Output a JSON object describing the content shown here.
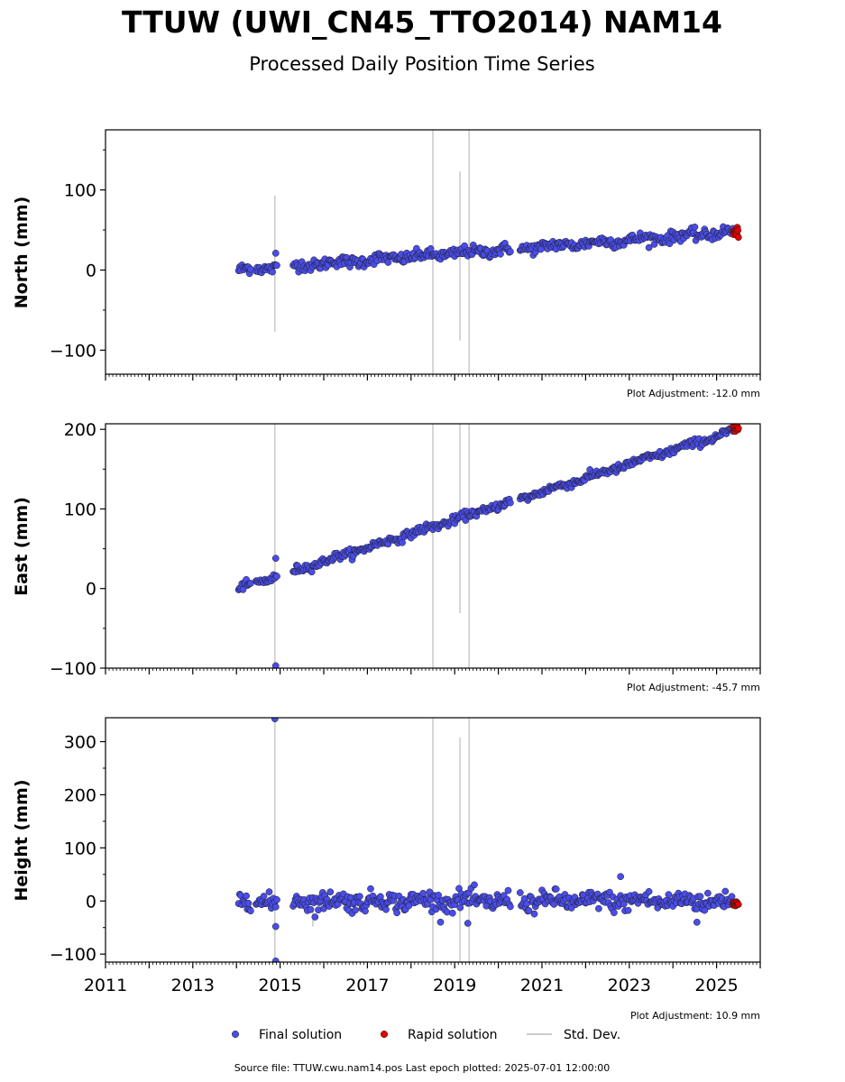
{
  "title": "TTUW (UWI_CN45_TTO2014) NAM14",
  "subtitle": "Processed Daily Position Time Series",
  "source": "Source file: TTUW.cwu.nam14.pos  Last epoch plotted: 2025-07-01 12:00:00",
  "legend": {
    "final": "Final solution",
    "rapid": "Rapid solution",
    "std": "Std. Dev."
  },
  "colors": {
    "final": "#4a4de8",
    "rapid": "#e00000",
    "std": "#cccccc"
  },
  "chart_data": [
    {
      "type": "scatter",
      "component": "north",
      "ylabel": "North (mm)",
      "adjustment": "Plot Adjustment: -12.0 mm",
      "xlim": [
        2011.0,
        2026.0
      ],
      "ylim": [
        -130,
        175
      ],
      "yticks": [
        -100,
        0,
        100
      ],
      "trend": [
        {
          "x": 2014.05,
          "y": 0
        },
        {
          "x": 2025.5,
          "y": 48
        }
      ],
      "scatter_sd": 3.5,
      "gap_intervals": [
        [
          2014.95,
          2015.3
        ],
        [
          2020.3,
          2020.5
        ]
      ],
      "std_bars": [
        {
          "x": 2014.88,
          "low": -77,
          "high": 93
        },
        {
          "x": 2018.5,
          "low": -130,
          "high": 175
        },
        {
          "x": 2019.12,
          "low": -88,
          "high": 123
        },
        {
          "x": 2019.33,
          "low": -130,
          "high": 175
        }
      ],
      "outliers": [
        {
          "x": 2014.9,
          "y": 21
        }
      ],
      "rapid": {
        "x_start": 2025.38,
        "x_end": 2025.5,
        "y": 47
      }
    },
    {
      "type": "scatter",
      "component": "east",
      "ylabel": "East (mm)",
      "adjustment": "Plot Adjustment: -45.7 mm",
      "xlim": [
        2011.0,
        2026.0
      ],
      "ylim": [
        -100,
        207
      ],
      "yticks": [
        -100,
        0,
        100,
        200
      ],
      "trend": [
        {
          "x": 2014.05,
          "y": 0
        },
        {
          "x": 2025.5,
          "y": 200
        }
      ],
      "scatter_sd": 2.5,
      "gap_intervals": [
        [
          2014.95,
          2015.3
        ],
        [
          2020.3,
          2020.5
        ]
      ],
      "std_bars": [
        {
          "x": 2014.88,
          "low": -100,
          "high": 207
        },
        {
          "x": 2018.5,
          "low": -100,
          "high": 207
        },
        {
          "x": 2019.12,
          "low": -31,
          "high": 207
        },
        {
          "x": 2019.33,
          "low": -100,
          "high": 207
        }
      ],
      "outliers": [
        {
          "x": 2014.9,
          "y": 38
        },
        {
          "x": 2014.9,
          "y": -97
        }
      ],
      "rapid": {
        "x_start": 2025.38,
        "x_end": 2025.5,
        "y": 200
      }
    },
    {
      "type": "scatter",
      "component": "height",
      "ylabel": "Height (mm)",
      "adjustment": "Plot Adjustment: 10.9 mm",
      "xlim": [
        2011.0,
        2026.0
      ],
      "ylim": [
        -115,
        345
      ],
      "yticks": [
        -100,
        0,
        100,
        200,
        300
      ],
      "xticks": [
        2011,
        2013,
        2015,
        2017,
        2019,
        2021,
        2023,
        2025
      ],
      "trend": [
        {
          "x": 2014.05,
          "y": 0
        },
        {
          "x": 2025.5,
          "y": 0
        }
      ],
      "scatter_sd": 9,
      "gap_intervals": [
        [
          2014.95,
          2015.3
        ],
        [
          2020.3,
          2020.5
        ]
      ],
      "std_bars": [
        {
          "x": 2014.88,
          "low": -115,
          "high": 345
        },
        {
          "x": 2015.75,
          "low": -48,
          "high": -15
        },
        {
          "x": 2018.5,
          "low": -115,
          "high": 345
        },
        {
          "x": 2019.12,
          "low": -115,
          "high": 308
        },
        {
          "x": 2019.33,
          "low": -115,
          "high": 345
        }
      ],
      "outliers": [
        {
          "x": 2014.88,
          "y": 343
        },
        {
          "x": 2014.9,
          "y": -113
        },
        {
          "x": 2014.9,
          "y": -48
        },
        {
          "x": 2022.8,
          "y": 46
        },
        {
          "x": 2024.55,
          "y": -40
        },
        {
          "x": 2019.3,
          "y": -42
        }
      ],
      "rapid": {
        "x_start": 2025.38,
        "x_end": 2025.5,
        "y": -5
      }
    }
  ]
}
